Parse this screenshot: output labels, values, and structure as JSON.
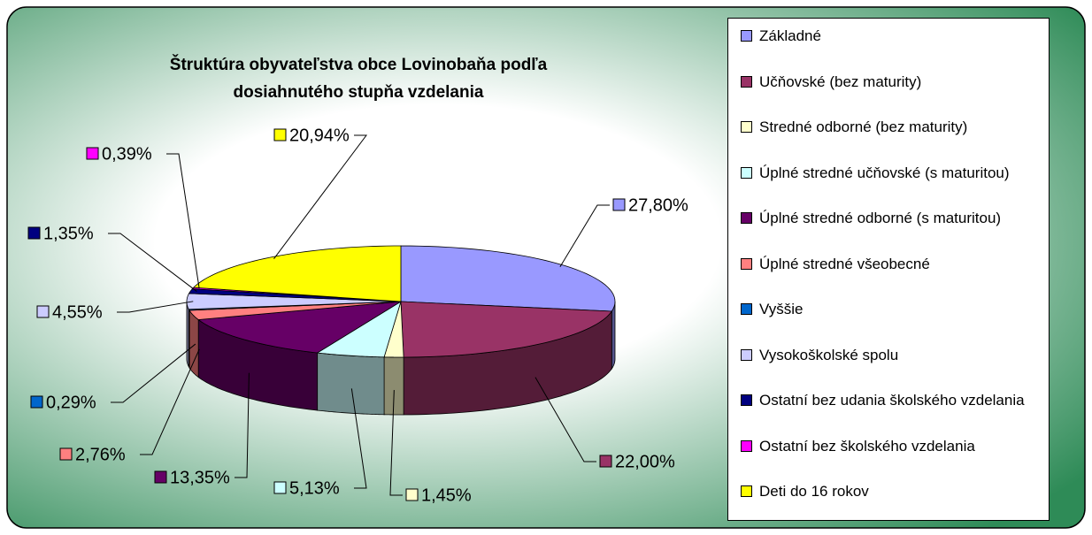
{
  "chart_data": {
    "type": "pie",
    "title": "Štruktúra obyvateľstva obce Lovinobaňa podľa dosiahnutého stupňa vzdelania",
    "categories": [
      "Základné",
      "Učňovské (bez maturity)",
      "Stredné odborné (bez maturity)",
      "Úplné stredné učňovské (s maturitou)",
      "Úplné stredné odborné (s maturitou)",
      "Úplné stredné všeobecné",
      "Vyššie",
      "Vysokoškolské spolu",
      "Ostatní bez udania školského vzdelania",
      "Ostatní bez školského vzdelania",
      "Deti do 16 rokov"
    ],
    "values": [
      27.8,
      22.0,
      1.45,
      5.13,
      13.35,
      2.76,
      0.29,
      4.55,
      1.35,
      0.39,
      20.94
    ],
    "value_labels": [
      "27,80%",
      "22,00%",
      "1,45%",
      "5,13%",
      "13,35%",
      "2,76%",
      "0,29%",
      "4,55%",
      "1,35%",
      "0,39%",
      "20,94%"
    ],
    "colors": [
      "#9999ff",
      "#993366",
      "#ffffcc",
      "#ccffff",
      "#660066",
      "#ff8080",
      "#0066cc",
      "#ccccff",
      "#000080",
      "#ff00ff",
      "#ffff00"
    ],
    "legend": "right"
  }
}
